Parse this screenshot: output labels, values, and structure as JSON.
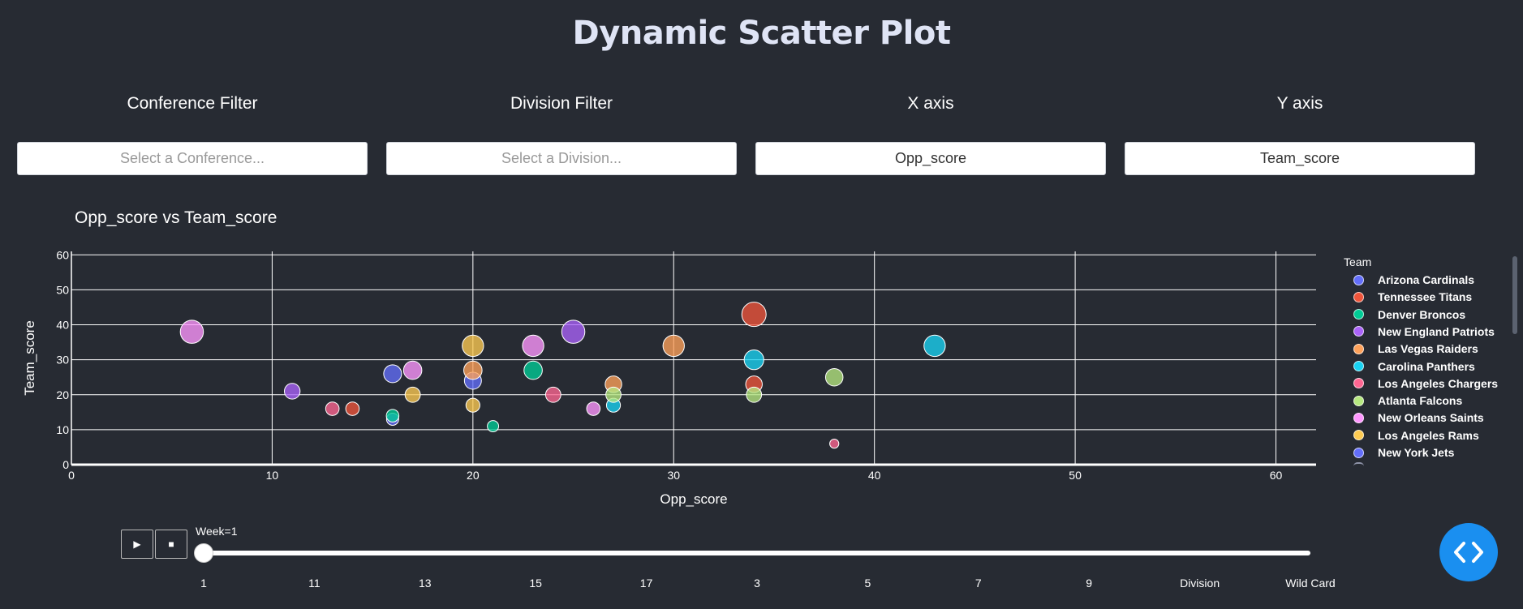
{
  "header": {
    "title": "Dynamic Scatter Plot"
  },
  "filters": [
    {
      "label": "Conference Filter",
      "text": "Select a Conference...",
      "kind": "placeholder"
    },
    {
      "label": "Division Filter",
      "text": "Select a Division...",
      "kind": "placeholder"
    },
    {
      "label": "X axis",
      "text": "Opp_score",
      "kind": "value"
    },
    {
      "label": "Y axis",
      "text": "Team_score",
      "kind": "value"
    }
  ],
  "plot": {
    "title": "Opp_score vs Team_score"
  },
  "chart_data": {
    "type": "scatter",
    "title": "Opp_score vs Team_score",
    "xlabel": "Opp_score",
    "ylabel": "Team_score",
    "xlim": [
      0,
      62
    ],
    "ylim": [
      0,
      61
    ],
    "xticks": [
      0,
      10,
      20,
      30,
      40,
      50,
      60
    ],
    "yticks": [
      0,
      10,
      20,
      30,
      40,
      50,
      60
    ],
    "grid": true,
    "legend_title": "Team",
    "legend_position": "right",
    "series": [
      {
        "name": "Arizona Cardinals",
        "color": "#636efa",
        "points": [
          [
            16,
            26
          ],
          [
            20,
            24
          ],
          [
            16,
            13
          ]
        ]
      },
      {
        "name": "Tennessee Titans",
        "color": "#ef553b",
        "points": [
          [
            34,
            43
          ],
          [
            34,
            23
          ],
          [
            14,
            16
          ]
        ]
      },
      {
        "name": "Denver Broncos",
        "color": "#00cc96",
        "points": [
          [
            23,
            27
          ],
          [
            16,
            14
          ],
          [
            21,
            11
          ]
        ]
      },
      {
        "name": "New England Patriots",
        "color": "#ab63fa",
        "points": [
          [
            25,
            38
          ],
          [
            11,
            21
          ]
        ]
      },
      {
        "name": "Las Vegas Raiders",
        "color": "#ffa15a",
        "points": [
          [
            30,
            34
          ],
          [
            27,
            23
          ],
          [
            20,
            27
          ]
        ]
      },
      {
        "name": "Carolina Panthers",
        "color": "#19d3f3",
        "points": [
          [
            43,
            34
          ],
          [
            34,
            30
          ],
          [
            27,
            17
          ]
        ]
      },
      {
        "name": "Los Angeles Chargers",
        "color": "#ff6692",
        "points": [
          [
            13,
            16
          ],
          [
            24,
            20
          ],
          [
            38,
            6
          ]
        ]
      },
      {
        "name": "Atlanta Falcons",
        "color": "#b6e880",
        "points": [
          [
            38,
            25
          ],
          [
            34,
            20
          ],
          [
            27,
            20
          ]
        ]
      },
      {
        "name": "New Orleans Saints",
        "color": "#ff97ff",
        "points": [
          [
            6,
            38
          ],
          [
            23,
            34
          ],
          [
            17,
            27
          ],
          [
            26,
            16
          ]
        ]
      },
      {
        "name": "Los Angeles Rams",
        "color": "#fecb52",
        "points": [
          [
            20,
            34
          ],
          [
            17,
            20
          ],
          [
            20,
            17
          ]
        ]
      },
      {
        "name": "New York Jets",
        "color": "#636efa",
        "points": []
      }
    ]
  },
  "legend": {
    "title": "Team"
  },
  "animation": {
    "current_label": "Week=1",
    "position": 0,
    "steps": [
      "1",
      "11",
      "13",
      "15",
      "17",
      "3",
      "5",
      "7",
      "9",
      "Division",
      "Wild Card"
    ],
    "play_icon": "play-icon",
    "stop_icon": "stop-icon"
  },
  "fab": {
    "icon": "code-icon"
  }
}
